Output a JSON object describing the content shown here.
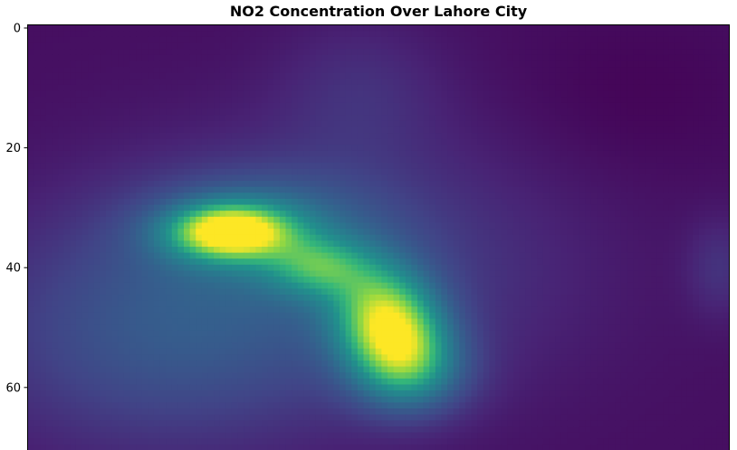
{
  "chart_data": {
    "type": "heatmap",
    "title": "NO2 Concentration Over Lahore City",
    "xlabel": "",
    "ylabel": "",
    "colormap": "viridis",
    "colorbar": false,
    "grid": false,
    "y_axis": {
      "inverted": true,
      "visible_range": [
        -0.5,
        70.5
      ],
      "ticks": [
        0,
        20,
        40,
        60
      ]
    },
    "x_axis": {
      "ticks_visible": false,
      "range": [
        -0.5,
        116.5
      ]
    },
    "grid_size": {
      "rows": 71,
      "cols": 117
    },
    "value_scale": [
      0,
      1
    ],
    "hotspots": [
      {
        "label": "primary peak",
        "row": 34,
        "col": 35,
        "value": 1.0
      },
      {
        "label": "secondary peak",
        "row": 52,
        "col": 62,
        "value": 0.86
      },
      {
        "label": "connecting ridge",
        "row": 42,
        "col": 52,
        "value": 0.7
      }
    ],
    "background_level_min": 0.02,
    "background_level_max": 0.22
  }
}
